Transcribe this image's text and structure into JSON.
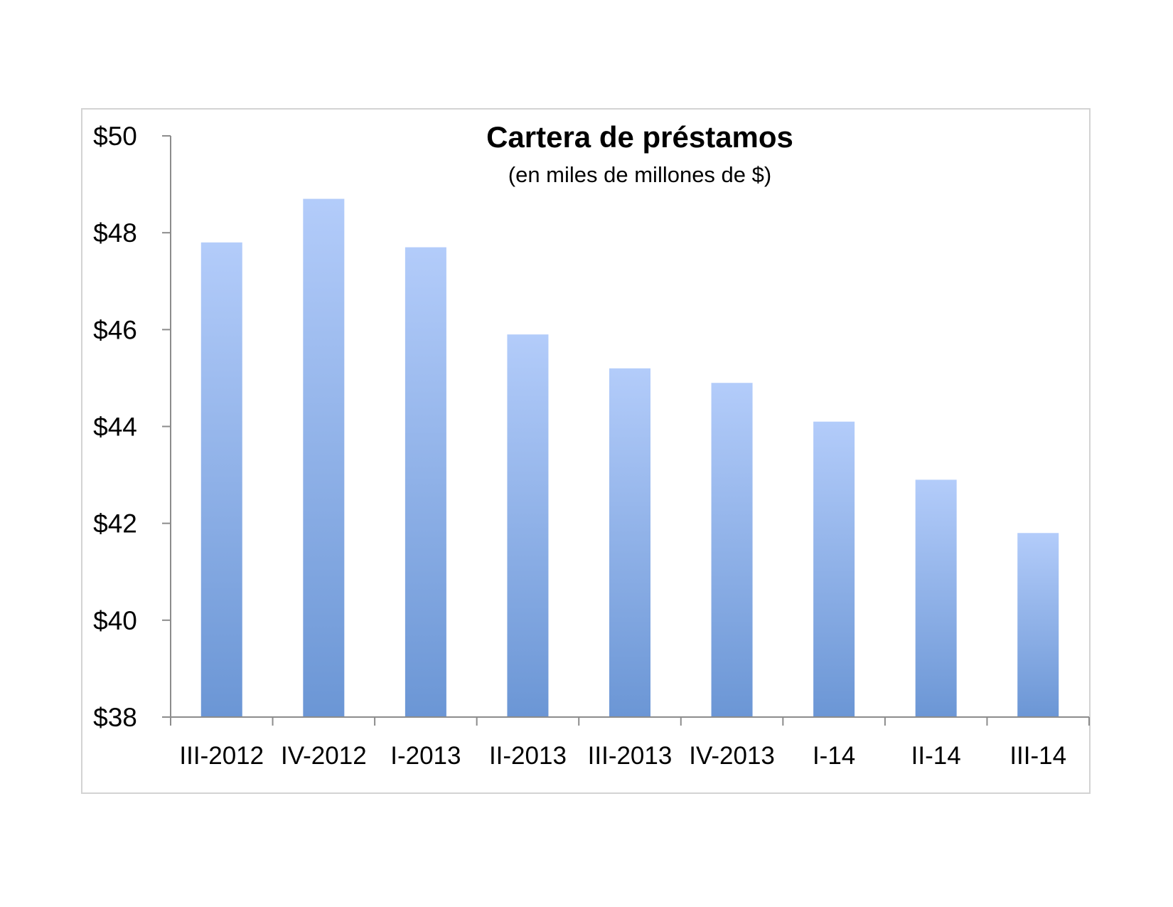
{
  "chart_data": {
    "type": "bar",
    "title": "Cartera de préstamos",
    "subtitle": "(en miles de millones de $)",
    "xlabel": "",
    "ylabel": "",
    "categories": [
      "III-2012",
      "IV-2012",
      "I-2013",
      "II-2013",
      "III-2013",
      "IV-2013",
      "I-14",
      "II-14",
      "III-14"
    ],
    "values": [
      47.8,
      48.7,
      47.7,
      45.9,
      45.2,
      44.9,
      44.1,
      42.9,
      41.8
    ],
    "ylim": [
      38,
      50
    ],
    "yticks": [
      38,
      40,
      42,
      44,
      46,
      48,
      50
    ],
    "ytick_labels": [
      "$38",
      "$40",
      "$42",
      "$44",
      "$46",
      "$48",
      "$50"
    ],
    "grid": false,
    "legend": "none",
    "bar_color_top": "#b3ccfa",
    "bar_color_bottom": "#6b96d5"
  }
}
